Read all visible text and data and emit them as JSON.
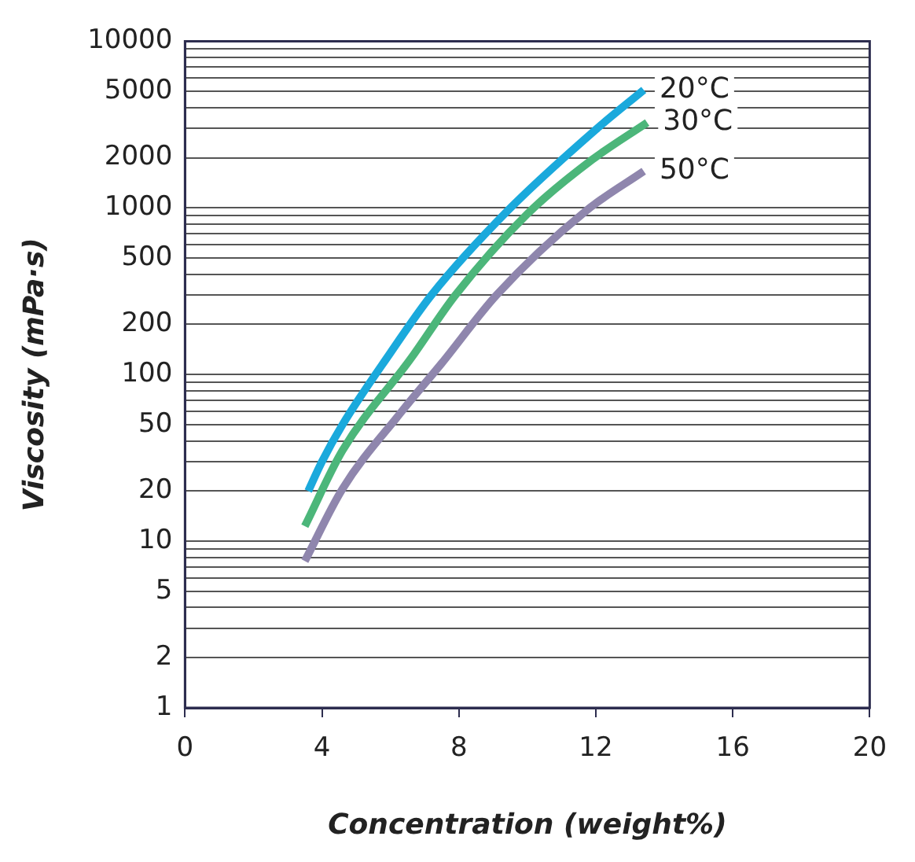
{
  "chart_data": {
    "type": "line",
    "xlabel": "Concentration (weight%)",
    "ylabel": "Viscosity (mPa·s)",
    "xlim": [
      0,
      20
    ],
    "xticks": [
      0,
      4,
      8,
      12,
      16,
      20
    ],
    "ylim": [
      1,
      10000
    ],
    "log": "y",
    "yticks": [
      1,
      2,
      {
        "value": 3,
        "label": null
      },
      {
        "value": 4,
        "label": null
      },
      5,
      {
        "value": 6,
        "label": null
      },
      {
        "value": 7,
        "label": null
      },
      {
        "value": 8,
        "label": null
      },
      {
        "value": 9,
        "label": null
      },
      10,
      20,
      {
        "value": 30,
        "label": null
      },
      {
        "value": 40,
        "label": null
      },
      50,
      {
        "value": 60,
        "label": null
      },
      {
        "value": 70,
        "label": null
      },
      {
        "value": 80,
        "label": null
      },
      {
        "value": 90,
        "label": null
      },
      100,
      200,
      {
        "value": 300,
        "label": null
      },
      {
        "value": 400,
        "label": null
      },
      500,
      {
        "value": 600,
        "label": null
      },
      {
        "value": 700,
        "label": null
      },
      {
        "value": 800,
        "label": null
      },
      {
        "value": 900,
        "label": null
      },
      1000,
      2000,
      {
        "value": 3000,
        "label": null
      },
      {
        "value": 4000,
        "label": null
      },
      5000,
      {
        "value": 6000,
        "label": null
      },
      {
        "value": 7000,
        "label": null
      },
      {
        "value": 8000,
        "label": null
      },
      {
        "value": 9000,
        "label": null
      },
      10000
    ],
    "grid": "y",
    "legend": false,
    "marker": "none",
    "line_style": "solid",
    "series": [
      {
        "name": "20°C",
        "color": "#1aa9dc",
        "x": [
          3.6,
          4.0,
          4.6,
          6.0,
          7.2,
          9.4,
          12.0,
          13.4
        ],
        "values": [
          20,
          30,
          50,
          135,
          300,
          950,
          2950,
          5100
        ]
      },
      {
        "name": "30°C",
        "color": "#4cb67a",
        "x": [
          3.5,
          4.6,
          6.6,
          7.9,
          10.0,
          11.9,
          13.5
        ],
        "values": [
          12.3,
          35,
          125,
          300,
          920,
          1950,
          3250
        ]
      },
      {
        "name": "50°C",
        "color": "#8f86ad",
        "x": [
          3.5,
          4.6,
          6.3,
          7.5,
          9.1,
          11.7,
          13.4
        ],
        "values": [
          7.6,
          20.6,
          59,
          117,
          300,
          955,
          1660
        ]
      }
    ]
  }
}
